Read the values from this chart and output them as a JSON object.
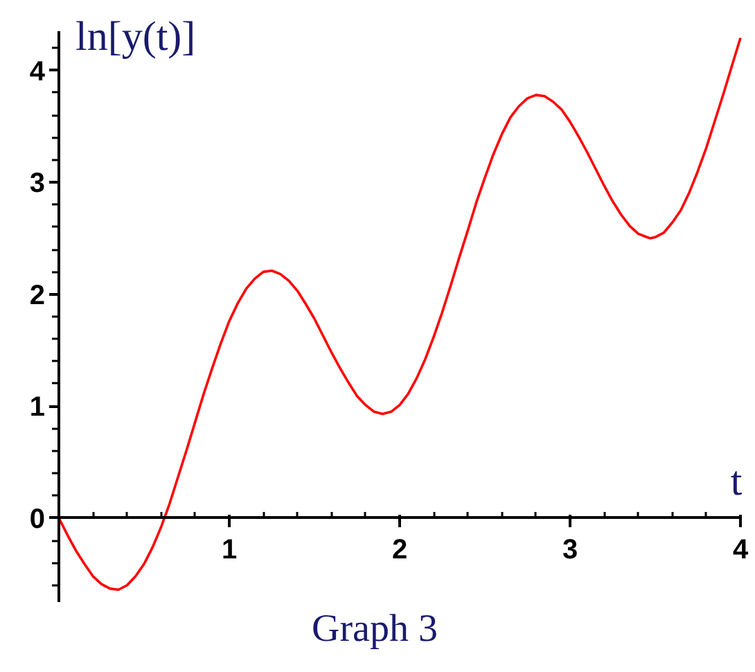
{
  "chart_data": {
    "type": "line",
    "title": "Graph 3",
    "xlabel": "t",
    "ylabel": "ln[y(t)]",
    "x": [
      0,
      0.05,
      0.1,
      0.15,
      0.2,
      0.25,
      0.3,
      0.35,
      0.4,
      0.45,
      0.5,
      0.55,
      0.6,
      0.65,
      0.7,
      0.75,
      0.8,
      0.85,
      0.9,
      0.95,
      1,
      1.05,
      1.1,
      1.15,
      1.2,
      1.25,
      1.3,
      1.35,
      1.4,
      1.45,
      1.5,
      1.55,
      1.6,
      1.65,
      1.7,
      1.75,
      1.8,
      1.85,
      1.9,
      1.95,
      2,
      2.05,
      2.1,
      2.15,
      2.2,
      2.25,
      2.3,
      2.35,
      2.4,
      2.45,
      2.5,
      2.55,
      2.6,
      2.65,
      2.7,
      2.75,
      2.8,
      2.85,
      2.9,
      2.95,
      3,
      3.05,
      3.1,
      3.15,
      3.2,
      3.25,
      3.3,
      3.35,
      3.4,
      3.45,
      3.47,
      3.5,
      3.55,
      3.6,
      3.65,
      3.7,
      3.75,
      3.8,
      3.85,
      3.9,
      3.95,
      4
    ],
    "series": [
      {
        "color": "#ff0000",
        "values": [
          0,
          -0.15,
          -0.29,
          -0.41,
          -0.52,
          -0.59,
          -0.63,
          -0.64,
          -0.6,
          -0.52,
          -0.41,
          -0.26,
          -0.08,
          0.13,
          0.37,
          0.61,
          0.86,
          1.11,
          1.34,
          1.56,
          1.76,
          1.92,
          2.05,
          2.14,
          2.2,
          2.21,
          2.18,
          2.12,
          2.03,
          1.91,
          1.78,
          1.63,
          1.48,
          1.34,
          1.21,
          1.09,
          1.01,
          0.95,
          0.93,
          0.95,
          1.01,
          1.11,
          1.25,
          1.42,
          1.62,
          1.84,
          2.08,
          2.33,
          2.57,
          2.82,
          3.04,
          3.25,
          3.43,
          3.58,
          3.68,
          3.75,
          3.78,
          3.77,
          3.72,
          3.65,
          3.54,
          3.41,
          3.27,
          3.12,
          2.97,
          2.83,
          2.71,
          2.61,
          2.54,
          2.51,
          2.5,
          2.51,
          2.55,
          2.64,
          2.75,
          2.91,
          3.1,
          3.31,
          3.55,
          3.79,
          4.04,
          4.29
        ]
      }
    ],
    "xlim": [
      0,
      4
    ],
    "ylim": [
      -0.75,
      4.35
    ],
    "xticks": [
      {
        "value": 0.2,
        "label": null
      },
      {
        "value": 0.4,
        "label": null
      },
      {
        "value": 0.6,
        "label": null
      },
      {
        "value": 0.8,
        "label": null
      },
      1,
      {
        "value": 1.2,
        "label": null
      },
      {
        "value": 1.4,
        "label": null
      },
      {
        "value": 1.6,
        "label": null
      },
      {
        "value": 1.8,
        "label": null
      },
      2,
      {
        "value": 2.2,
        "label": null
      },
      {
        "value": 2.4,
        "label": null
      },
      {
        "value": 2.6,
        "label": null
      },
      {
        "value": 2.8,
        "label": null
      },
      3,
      {
        "value": 3.2,
        "label": null
      },
      {
        "value": 3.4,
        "label": null
      },
      {
        "value": 3.6,
        "label": null
      },
      {
        "value": 3.8,
        "label": null
      },
      4
    ],
    "yticks": [
      {
        "value": -0.6,
        "label": null
      },
      {
        "value": -0.4,
        "label": null
      },
      {
        "value": -0.2,
        "label": null
      },
      0,
      {
        "value": 0.2,
        "label": null
      },
      {
        "value": 0.4,
        "label": null
      },
      {
        "value": 0.6,
        "label": null
      },
      {
        "value": 0.8,
        "label": null
      },
      1,
      {
        "value": 1.2,
        "label": null
      },
      {
        "value": 1.4,
        "label": null
      },
      {
        "value": 1.6,
        "label": null
      },
      {
        "value": 1.8,
        "label": null
      },
      2,
      {
        "value": 2.2,
        "label": null
      },
      {
        "value": 2.4,
        "label": null
      },
      {
        "value": 2.6,
        "label": null
      },
      {
        "value": 2.8,
        "label": null
      },
      3,
      {
        "value": 3.2,
        "label": null
      },
      {
        "value": 3.4,
        "label": null
      },
      {
        "value": 3.6,
        "label": null
      },
      {
        "value": 3.8,
        "label": null
      },
      4,
      {
        "value": 4.2,
        "label": null
      }
    ],
    "line_style": "solid"
  }
}
